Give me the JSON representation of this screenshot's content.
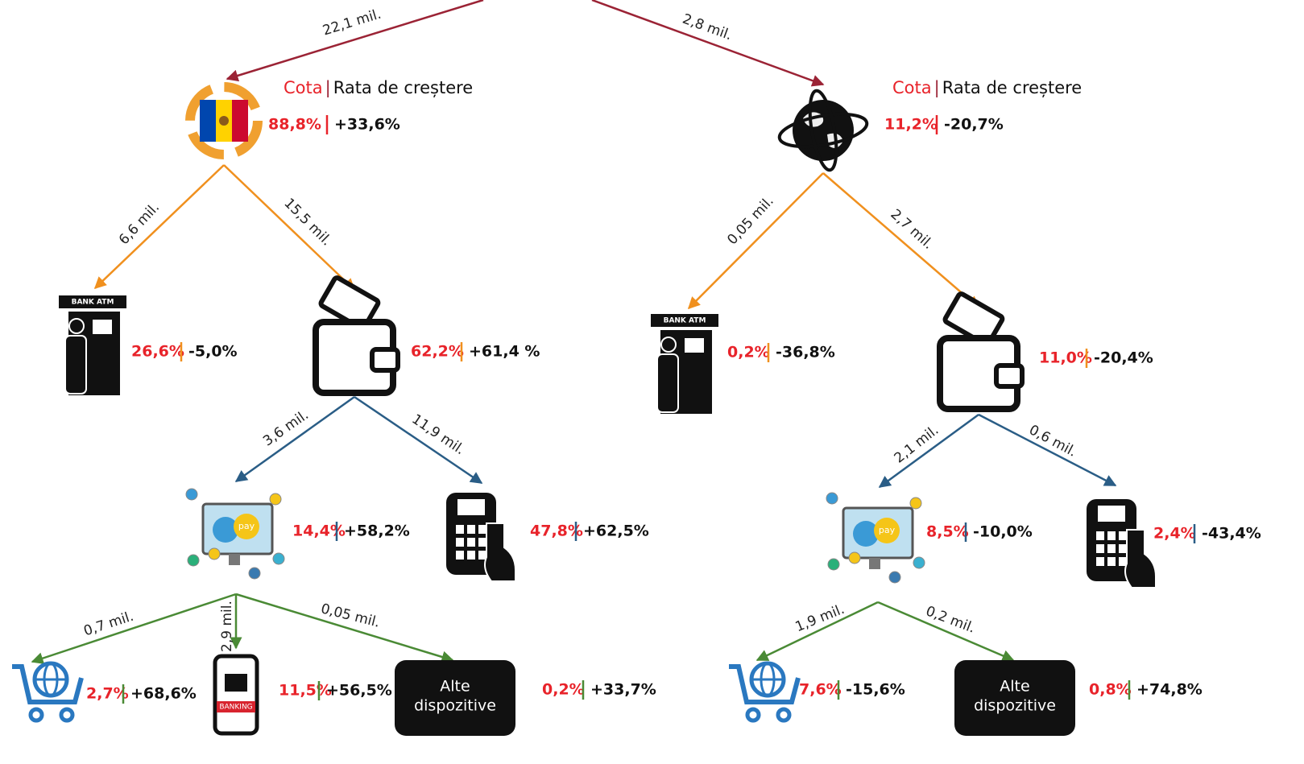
{
  "legend": {
    "share": "Cota",
    "growth": "Rata de creștere"
  },
  "edges": [
    {
      "label": "22,1 mil."
    },
    {
      "label": "2,8 mil."
    },
    {
      "label": "6,6 mil."
    },
    {
      "label": "15,5 mil."
    },
    {
      "label": "0,05 mil."
    },
    {
      "label": "2,7 mil."
    },
    {
      "label": "3,6 mil."
    },
    {
      "label": "11,9 mil."
    },
    {
      "label": "2,1 mil."
    },
    {
      "label": "0,6 mil."
    },
    {
      "label": "0,7 mil."
    },
    {
      "label": "2,9 mil."
    },
    {
      "label": "0,05 mil."
    },
    {
      "label": "1,9 mil."
    },
    {
      "label": "0,2 mil."
    }
  ],
  "nodes": [
    {
      "share": "88,8%",
      "growth": "+33,6%"
    },
    {
      "share": "11,2%",
      "growth": "-20,7%"
    },
    {
      "share": "26,6%",
      "growth": "-5,0%",
      "icon_label": "BANK ATM"
    },
    {
      "share": "62,2%",
      "growth": "+61,4 %"
    },
    {
      "share": "14,4%",
      "growth": "+58,2%",
      "icon_label": "pay"
    },
    {
      "share": "47,8%",
      "growth": "+62,5%"
    },
    {
      "share": "2,7%",
      "growth": "+68,6%"
    },
    {
      "share": "11,5%",
      "growth": "+56,5%",
      "icon_label": "BANKING"
    },
    {
      "share": "0,2%",
      "growth": "+33,7%",
      "icon_label": [
        "Alte",
        "dispozitive"
      ]
    },
    {
      "share": "0,2%",
      "growth": "-36,8%",
      "icon_label": "BANK ATM"
    },
    {
      "share": "11,0%",
      "growth": "-20,4%"
    },
    {
      "share": "8,5%",
      "growth": "-10,0%",
      "icon_label": "pay"
    },
    {
      "share": "2,4%",
      "growth": "-43,4%"
    },
    {
      "share": "7,6%",
      "growth": "-15,6%"
    },
    {
      "share": "0,8%",
      "growth": "+74,8%",
      "icon_label": [
        "Alte",
        "dispozitive"
      ]
    }
  ]
}
